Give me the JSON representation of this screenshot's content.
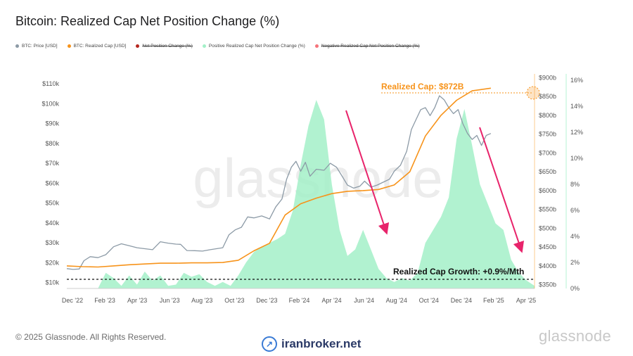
{
  "header": {
    "title": "Bitcoin: Realized Cap Net Position Change (%)"
  },
  "legend": [
    {
      "label": "BTC: Price [USD]",
      "color": "#8c9aa6",
      "struck": false
    },
    {
      "label": "BTC: Realized Cap [USD]",
      "color": "#f7931a",
      "struck": false
    },
    {
      "label": "Net Position Change (%)",
      "color": "#b5271f",
      "struck": true
    },
    {
      "label": "Positive Realized Cap Net Position Change (%)",
      "color": "#a3f0c8",
      "struck": false
    },
    {
      "label": "Negative Realized Cap Net Position Change (%)",
      "color": "#f5737a",
      "struck": true
    }
  ],
  "chart_data": {
    "type": "line",
    "x_ticks": [
      "Dec '22",
      "Feb '23",
      "Apr '23",
      "Jun '23",
      "Aug '23",
      "Oct '23",
      "Dec '23",
      "Feb '24",
      "Apr '24",
      "Jun '24",
      "Aug '24",
      "Oct '24",
      "Dec '24",
      "Feb '25",
      "Apr '25"
    ],
    "y_left": {
      "label": "",
      "ticks": [
        "$10k",
        "$20k",
        "$30k",
        "$40k",
        "$50k",
        "$60k",
        "$70k",
        "$80k",
        "$90k",
        "$100k",
        "$110k"
      ],
      "range": [
        7000,
        115000
      ]
    },
    "y_mid": {
      "label": "",
      "ticks": [
        "$350b",
        "$400b",
        "$450b",
        "$500b",
        "$550b",
        "$600b",
        "$650b",
        "$700b",
        "$750b",
        "$800b",
        "$850b",
        "$900b"
      ],
      "range": [
        340,
        910
      ]
    },
    "y_right": {
      "label": "",
      "ticks": [
        "0%",
        "2%",
        "4%",
        "6%",
        "8%",
        "10%",
        "12%",
        "14%",
        "16%"
      ],
      "range": [
        0,
        16.5
      ]
    },
    "grid": false,
    "watermark": "glassnode",
    "annotations": {
      "realized_cap": "Realized Cap: $872B",
      "growth": "Realized Cap Growth: +0.9%/Mth"
    },
    "series": [
      {
        "name": "BTC: Price [USD]",
        "color": "#8c9aa6",
        "axis": "left",
        "points": [
          [
            0,
            17000
          ],
          [
            0.4,
            16600
          ],
          [
            0.8,
            16800
          ],
          [
            1.1,
            21000
          ],
          [
            1.5,
            23000
          ],
          [
            2.0,
            22500
          ],
          [
            2.5,
            24000
          ],
          [
            3.0,
            28000
          ],
          [
            3.5,
            29500
          ],
          [
            4.0,
            28500
          ],
          [
            4.5,
            27500
          ],
          [
            5.0,
            27000
          ],
          [
            5.5,
            26500
          ],
          [
            6.0,
            30500
          ],
          [
            6.5,
            29800
          ],
          [
            7.0,
            29300
          ],
          [
            7.3,
            29200
          ],
          [
            7.7,
            26100
          ],
          [
            8.2,
            26000
          ],
          [
            8.7,
            25800
          ],
          [
            9.2,
            26500
          ],
          [
            9.6,
            27000
          ],
          [
            10.0,
            27500
          ],
          [
            10.4,
            34000
          ],
          [
            10.8,
            36500
          ],
          [
            11.2,
            37800
          ],
          [
            11.6,
            43000
          ],
          [
            12.0,
            42500
          ],
          [
            12.5,
            43500
          ],
          [
            13.0,
            42000
          ],
          [
            13.4,
            48000
          ],
          [
            13.8,
            52000
          ],
          [
            14.1,
            62000
          ],
          [
            14.4,
            68000
          ],
          [
            14.7,
            71000
          ],
          [
            15.0,
            66000
          ],
          [
            15.3,
            70500
          ],
          [
            15.6,
            63500
          ],
          [
            16.0,
            67000
          ],
          [
            16.5,
            66500
          ],
          [
            16.9,
            70000
          ],
          [
            17.3,
            68000
          ],
          [
            17.7,
            63000
          ],
          [
            18.0,
            59000
          ],
          [
            18.4,
            57500
          ],
          [
            18.8,
            58500
          ],
          [
            19.1,
            61000
          ],
          [
            19.5,
            58000
          ],
          [
            19.9,
            59000
          ],
          [
            20.3,
            60500
          ],
          [
            20.7,
            62000
          ],
          [
            21.0,
            66000
          ],
          [
            21.4,
            69000
          ],
          [
            21.8,
            76000
          ],
          [
            22.1,
            87000
          ],
          [
            22.4,
            92000
          ],
          [
            22.7,
            97000
          ],
          [
            23.0,
            98000
          ],
          [
            23.3,
            94000
          ],
          [
            23.6,
            98000
          ],
          [
            23.9,
            104000
          ],
          [
            24.2,
            102000
          ],
          [
            24.5,
            98000
          ],
          [
            24.8,
            95000
          ],
          [
            25.1,
            97000
          ],
          [
            25.4,
            90000
          ],
          [
            25.7,
            85000
          ],
          [
            26.0,
            82000
          ],
          [
            26.3,
            84000
          ],
          [
            26.6,
            79000
          ],
          [
            26.9,
            84000
          ],
          [
            27.2,
            85000
          ]
        ]
      },
      {
        "name": "BTC: Realized Cap [USD]",
        "color": "#f7931a",
        "axis": "mid",
        "points": [
          [
            0,
            400
          ],
          [
            1,
            398
          ],
          [
            2,
            397
          ],
          [
            3,
            400
          ],
          [
            4,
            403
          ],
          [
            5,
            405
          ],
          [
            6,
            407
          ],
          [
            7,
            407
          ],
          [
            8,
            408
          ],
          [
            9,
            408
          ],
          [
            10,
            409
          ],
          [
            11,
            415
          ],
          [
            12,
            440
          ],
          [
            13,
            460
          ],
          [
            14,
            535
          ],
          [
            15,
            565
          ],
          [
            16,
            580
          ],
          [
            17,
            592
          ],
          [
            18,
            598
          ],
          [
            19,
            600
          ],
          [
            20,
            603
          ],
          [
            21,
            615
          ],
          [
            22,
            650
          ],
          [
            23,
            745
          ],
          [
            24,
            800
          ],
          [
            25,
            840
          ],
          [
            26,
            865
          ],
          [
            27.2,
            872
          ]
        ]
      },
      {
        "name": "Positive Realized Cap Net Position Change (%)",
        "color": "#a3f0c8",
        "axis": "right",
        "type": "area",
        "points": [
          [
            0,
            0
          ],
          [
            2,
            0
          ],
          [
            2.5,
            1.2
          ],
          [
            3,
            0.8
          ],
          [
            3.5,
            0.2
          ],
          [
            4,
            1.0
          ],
          [
            4.5,
            0.3
          ],
          [
            5,
            1.3
          ],
          [
            5.5,
            0.6
          ],
          [
            6,
            1.0
          ],
          [
            6.5,
            0.2
          ],
          [
            7,
            0.3
          ],
          [
            7.5,
            1.2
          ],
          [
            8,
            0.9
          ],
          [
            8.5,
            1.1
          ],
          [
            9,
            0.5
          ],
          [
            9.5,
            0.2
          ],
          [
            10,
            0.5
          ],
          [
            10.5,
            0.2
          ],
          [
            11,
            1.0
          ],
          [
            11.5,
            2.0
          ],
          [
            12,
            2.8
          ],
          [
            12.5,
            3.2
          ],
          [
            13,
            3.5
          ],
          [
            13.5,
            3.8
          ],
          [
            14,
            4.2
          ],
          [
            14.5,
            6.0
          ],
          [
            15,
            9.5
          ],
          [
            15.5,
            12.5
          ],
          [
            16,
            14.5
          ],
          [
            16.5,
            13.0
          ],
          [
            17,
            8.0
          ],
          [
            17.5,
            4.5
          ],
          [
            18,
            2.5
          ],
          [
            18.5,
            3.0
          ],
          [
            19,
            4.5
          ],
          [
            19.5,
            3.0
          ],
          [
            20,
            1.5
          ],
          [
            20.5,
            0.8
          ],
          [
            21,
            0.5
          ],
          [
            21.5,
            0.8
          ],
          [
            22,
            0.6
          ],
          [
            22.5,
            1.2
          ],
          [
            23,
            3.5
          ],
          [
            23.5,
            4.5
          ],
          [
            24,
            5.5
          ],
          [
            24.5,
            7.0
          ],
          [
            25,
            11.5
          ],
          [
            25.5,
            13.8
          ],
          [
            26,
            11.0
          ],
          [
            26.5,
            8.0
          ],
          [
            27,
            6.5
          ],
          [
            27.5,
            5.0
          ],
          [
            28,
            4.5
          ],
          [
            28.5,
            2.2
          ],
          [
            29,
            1.2
          ],
          [
            29.5,
            0.6
          ],
          [
            30,
            0.2
          ]
        ]
      }
    ]
  }
}
